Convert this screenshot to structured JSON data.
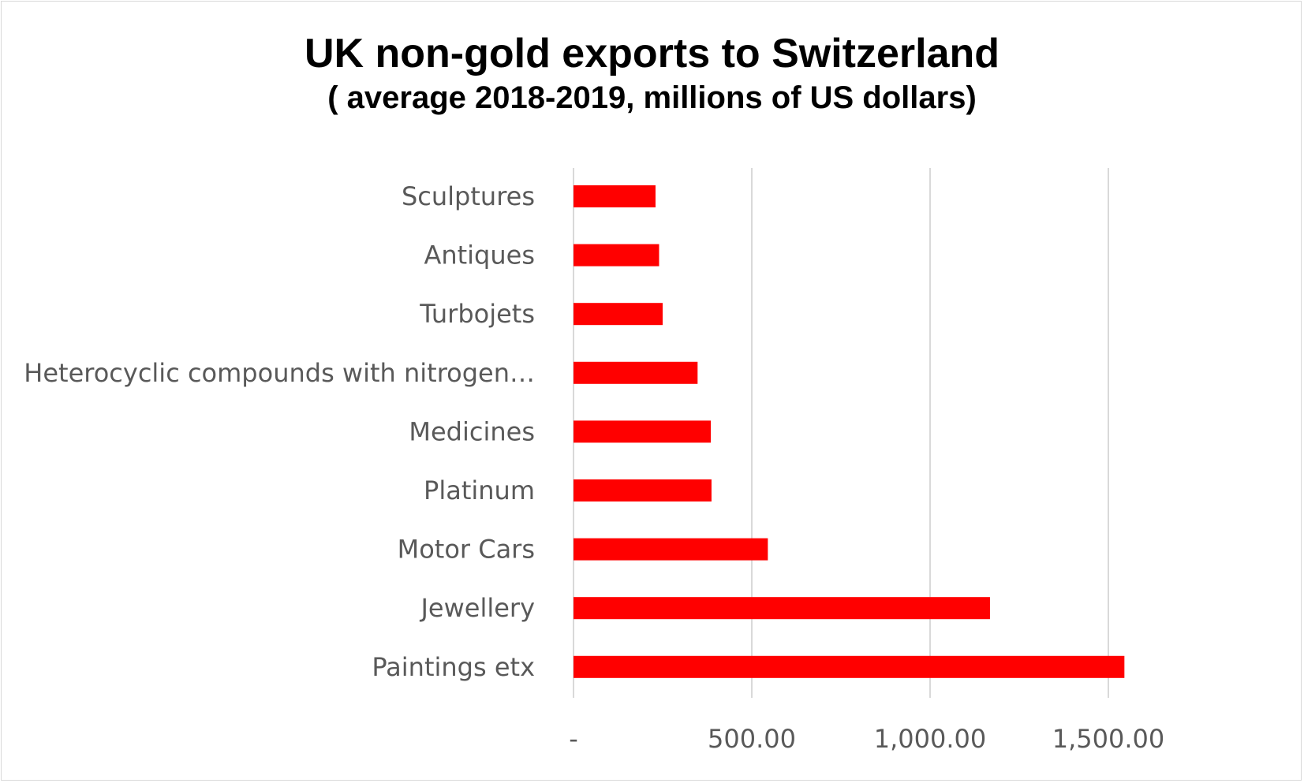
{
  "chart_data": {
    "type": "bar",
    "orientation": "horizontal",
    "title": "UK non-gold exports to Switzerland",
    "subtitle": "( average 2018-2019, millions of US dollars)",
    "xlabel": "",
    "ylabel": "",
    "categories": [
      "Sculptures",
      "Antiques",
      "Turbojets",
      "Heterocyclic compounds with nitrogen…",
      "Medicines",
      "Platinum",
      "Motor Cars",
      "Jewellery",
      "Paintings etx"
    ],
    "values": [
      230,
      240,
      250,
      348,
      385,
      387,
      545,
      1168,
      1545
    ],
    "xlim": [
      0,
      1500
    ],
    "xticks": [
      0,
      500,
      1000,
      1500
    ],
    "xtick_labels": [
      "-",
      "500.00",
      "1,000.00",
      "1,500.00"
    ],
    "grid": "vertical",
    "legend": "none",
    "bar_color": "#ff0000",
    "grid_color": "#d9d9d9"
  }
}
